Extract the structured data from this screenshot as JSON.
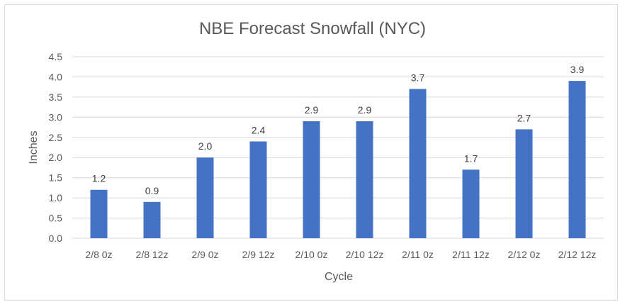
{
  "chart_data": {
    "type": "bar",
    "title": "NBE Forecast Snowfall (NYC)",
    "xlabel": "Cycle",
    "ylabel": "Inches",
    "categories": [
      "2/8 0z",
      "2/8 12z",
      "2/9 0z",
      "2/9 12z",
      "2/10 0z",
      "2/10 12z",
      "2/11 0z",
      "2/11 12z",
      "2/12 0z",
      "2/12 12z"
    ],
    "values": [
      1.2,
      0.9,
      2.0,
      2.4,
      2.9,
      2.9,
      3.7,
      1.7,
      2.7,
      3.9
    ],
    "data_labels": [
      "1.2",
      "0.9",
      "2.0",
      "2.4",
      "2.9",
      "2.9",
      "3.7",
      "1.7",
      "2.7",
      "3.9"
    ],
    "ylim": [
      0,
      4.5
    ],
    "yticks": [
      "0.0",
      "0.5",
      "1.0",
      "1.5",
      "2.0",
      "2.5",
      "3.0",
      "3.5",
      "4.0",
      "4.5"
    ],
    "grid": true,
    "legend": "none",
    "bar_color": "#4472C4"
  }
}
